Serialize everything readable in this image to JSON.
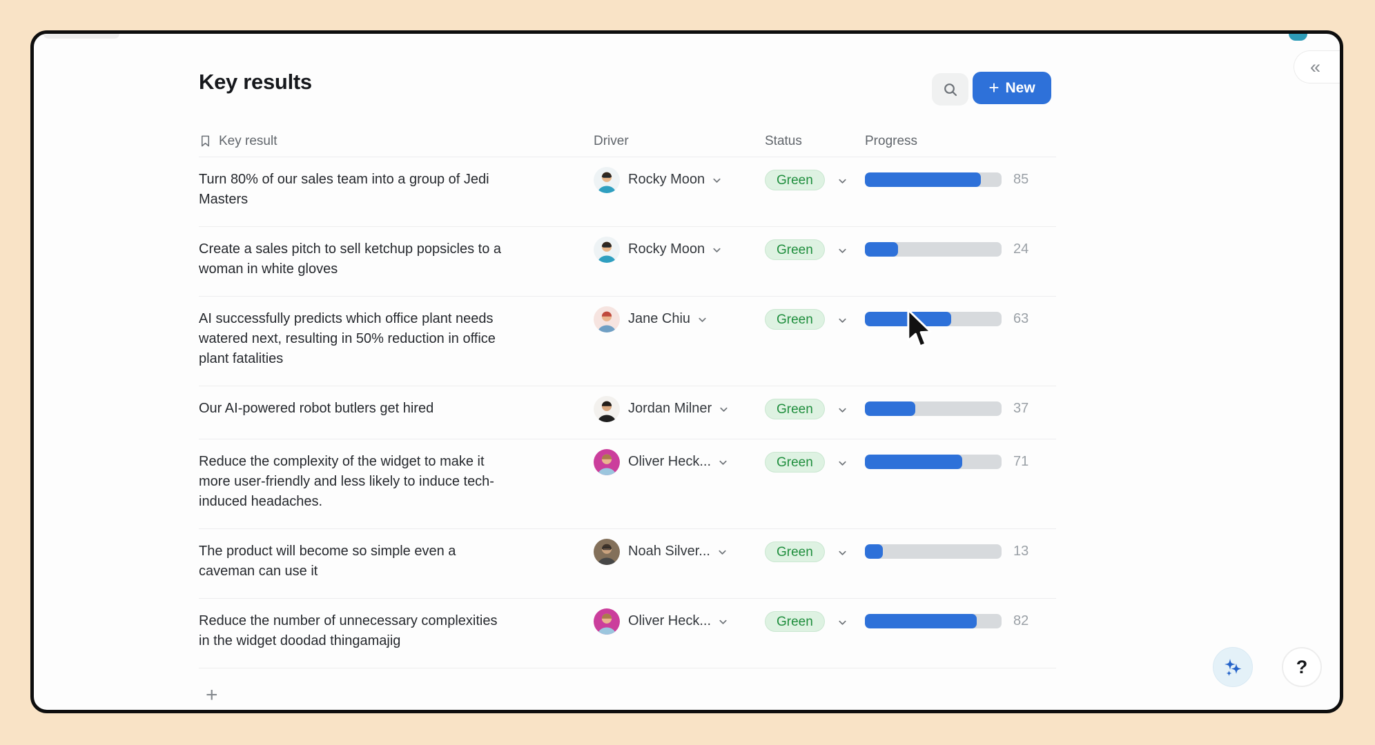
{
  "page": {
    "title": "Key results"
  },
  "toolbar": {
    "search_icon": "search-icon",
    "new_plus": "+",
    "new_label": "New"
  },
  "collapse": {
    "glyph": "«"
  },
  "table": {
    "columns": {
      "key_result": "Key result",
      "driver": "Driver",
      "status": "Status",
      "progress": "Progress"
    },
    "rows": [
      {
        "text": "Turn 80% of our sales team into a group of Jedi\nMasters",
        "driver": "Rocky Moon",
        "status": "Green",
        "progress": 85,
        "avatar": {
          "bg": "#eef3f5",
          "skin": "#e9b689",
          "hair": "#33281f",
          "shirt": "#2f9fc0",
          "sunglasses": true
        }
      },
      {
        "text": "Create a sales pitch to sell ketchup popsicles to a\nwoman in white gloves",
        "driver": "Rocky Moon",
        "status": "Green",
        "progress": 24,
        "avatar": {
          "bg": "#eef3f5",
          "skin": "#e9b689",
          "hair": "#33281f",
          "shirt": "#2f9fc0",
          "sunglasses": true
        }
      },
      {
        "text": "AI successfully predicts which office plant needs\nwatered next, resulting in 50% reduction in office\nplant fatalities",
        "driver": "Jane Chiu",
        "status": "Green",
        "progress": 63,
        "avatar": {
          "bg": "#f6e4e0",
          "skin": "#eab68f",
          "hair": "#bf4a3e",
          "shirt": "#6f9fc4"
        }
      },
      {
        "text": "Our AI-powered robot butlers get hired",
        "driver": "Jordan Milner",
        "status": "Green",
        "progress": 37,
        "avatar": {
          "bg": "#f3f1ee",
          "skin": "#d9a77f",
          "hair": "#221d1a",
          "shirt": "#1f1f1f"
        }
      },
      {
        "text": "Reduce the complexity of the widget to make it\nmore user-friendly and less likely to induce tech-\ninduced headaches.",
        "driver": "Oliver Heck...",
        "status": "Green",
        "progress": 71,
        "avatar": {
          "bg": "#cb3e9c",
          "skin": "#eab68f",
          "hair": "#aa7c4c",
          "shirt": "#9cc6de"
        }
      },
      {
        "text": "The product will become so simple even a\ncaveman can use it",
        "driver": "Noah Silver...",
        "status": "Green",
        "progress": 13,
        "avatar": {
          "bg": "#83705a",
          "skin": "#caa27e",
          "hair": "#3e332a",
          "shirt": "#474747",
          "glasses": true
        }
      },
      {
        "text": "Reduce the number of unnecessary complexities\nin the widget doodad thingamajig",
        "driver": "Oliver Heck...",
        "status": "Green",
        "progress": 82,
        "avatar": {
          "bg": "#cb3e9c",
          "skin": "#eab68f",
          "hair": "#aa7c4c",
          "shirt": "#9cc6de"
        }
      }
    ]
  },
  "footer": {
    "add_glyph": "+"
  },
  "floating": {
    "ai_icon": "sparkles-icon",
    "help_label": "?"
  },
  "colors": {
    "page_bg": "#f9e3c6",
    "accent_blue": "#2e71d9",
    "status_green_bg": "#def2e2",
    "status_green_text": "#1f8e3d",
    "progress_track": "#d7dadd",
    "progress_value_text": "#9aa0a6"
  }
}
